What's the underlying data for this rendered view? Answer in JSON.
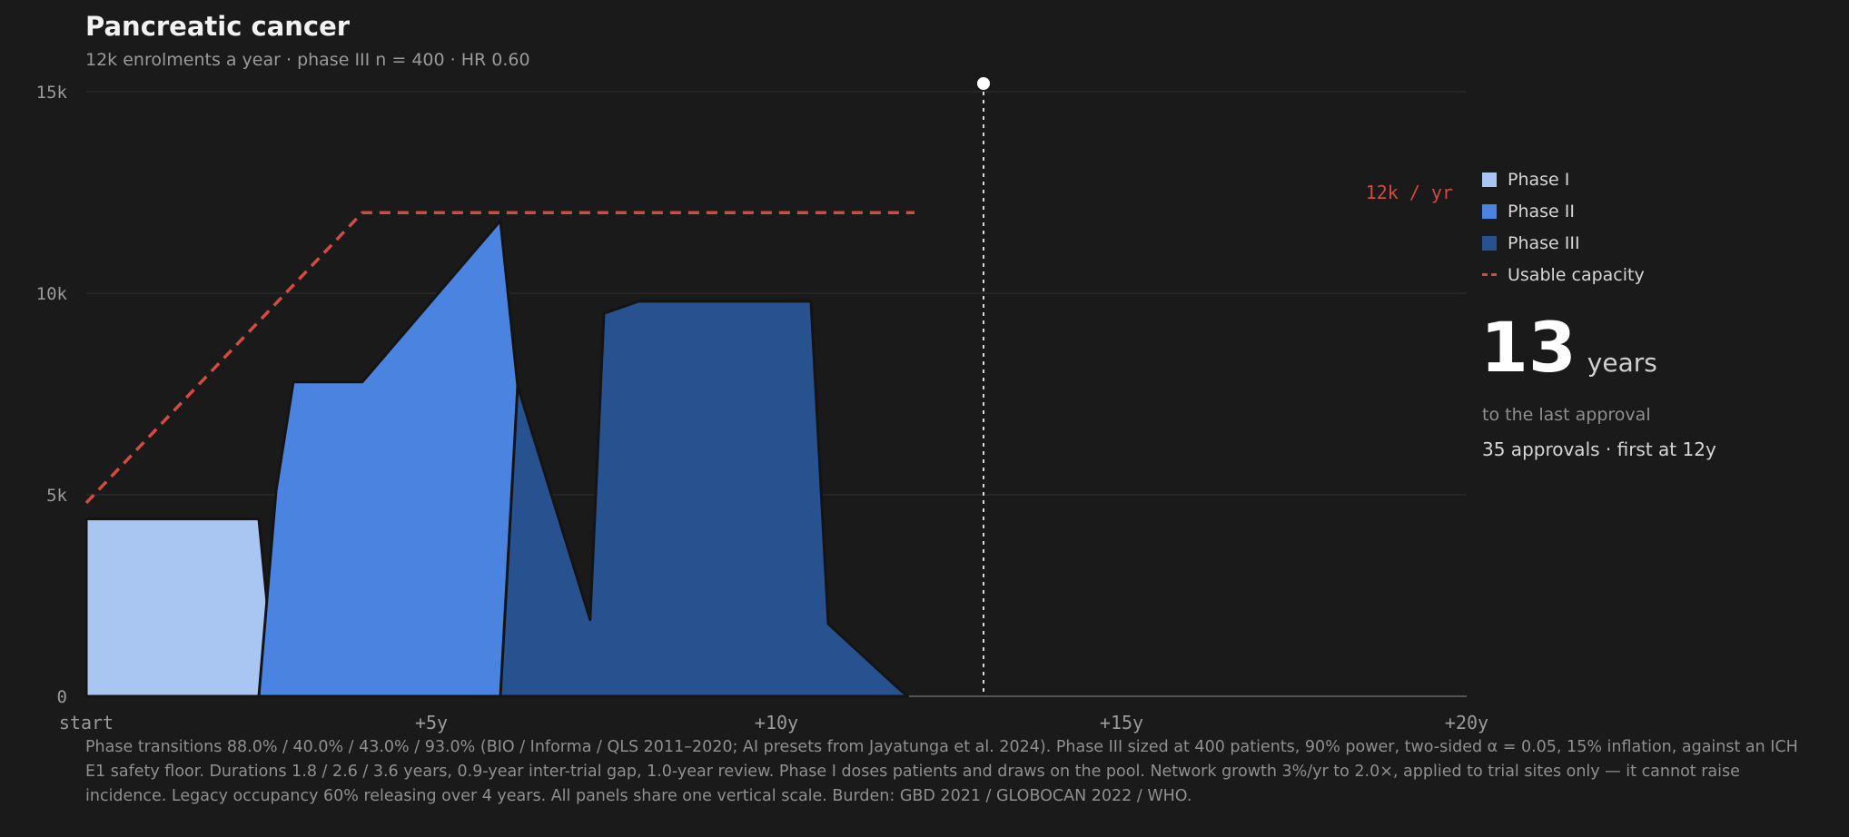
{
  "title": "Pancreatic cancer",
  "subtitle": "12k enrolments a year · phase III n = 400 · HR 0.60",
  "legend": {
    "items": [
      {
        "label": "Phase I",
        "color": "#a9c6f2"
      },
      {
        "label": "Phase II",
        "color": "#4a84e0"
      },
      {
        "label": "Phase III",
        "color": "#28518f"
      },
      {
        "label": "Usable capacity",
        "color": "#d24a40"
      }
    ]
  },
  "summary": {
    "number": "13",
    "unit": "years",
    "caption": "to the last approval",
    "detail": "35 approvals · first at 12y"
  },
  "capacity_label": "12k / yr",
  "footnote": "Phase transitions 88.0% / 40.0% / 43.0% / 93.0% (BIO / Informa / QLS 2011–2020; AI presets from Jayatunga et al. 2024). Phase III sized at 400 patients, 90% power, two-sided α = 0.05, 15% inflation, against an ICH E1 safety floor. Durations 1.8 / 2.6 / 3.6 years, 0.9-year inter-trial gap, 1.0-year review. Phase I doses patients and draws on the pool. Network growth 3%/yr to 2.0×, applied to trial sites only — it cannot raise incidence. Legacy occupancy 60% releasing over 4 years. All panels share one vertical scale. Burden: GBD 2021 / GLOBOCAN 2022 / WHO.",
  "chart_data": {
    "type": "area",
    "xlim": [
      0,
      20
    ],
    "ylim": [
      0,
      15000
    ],
    "y_ticks": [
      {
        "value": 0,
        "label": "0"
      },
      {
        "value": 5000,
        "label": "5k"
      },
      {
        "value": 10000,
        "label": "10k"
      },
      {
        "value": 15000,
        "label": "15k"
      }
    ],
    "x_ticks": [
      {
        "value": 0,
        "label": "start"
      },
      {
        "value": 5,
        "label": "+5y"
      },
      {
        "value": 10,
        "label": "+10y"
      },
      {
        "value": 15,
        "label": "+15y"
      },
      {
        "value": 20,
        "label": "+20y"
      }
    ],
    "grid": true,
    "stacked": true,
    "series": [
      {
        "name": "Phase I",
        "color": "#a9c6f2",
        "x": [
          0,
          2.5,
          2.75
        ],
        "values": [
          4400,
          4400,
          0
        ]
      },
      {
        "name": "Phase II",
        "color": "#4a84e0",
        "x": [
          2.5,
          2.75,
          3.0,
          4.0,
          6.0,
          6.25,
          7.3,
          7.5
        ],
        "values": [
          0,
          5100,
          7800,
          7800,
          11800,
          7700,
          700,
          0
        ]
      },
      {
        "name": "Phase III",
        "color": "#28518f",
        "x": [
          6.0,
          6.25,
          7.3,
          7.5,
          8.0,
          10.5,
          10.75,
          11.7,
          11.9
        ],
        "values": [
          0,
          7700,
          1900,
          9500,
          9800,
          9800,
          1800,
          300,
          0
        ]
      }
    ],
    "capacity": {
      "name": "Usable capacity",
      "color": "#d24a40",
      "x": [
        0,
        4,
        12
      ],
      "values": [
        4800,
        12000,
        12000
      ]
    },
    "marker": {
      "x": 13,
      "label": "13 years"
    }
  }
}
